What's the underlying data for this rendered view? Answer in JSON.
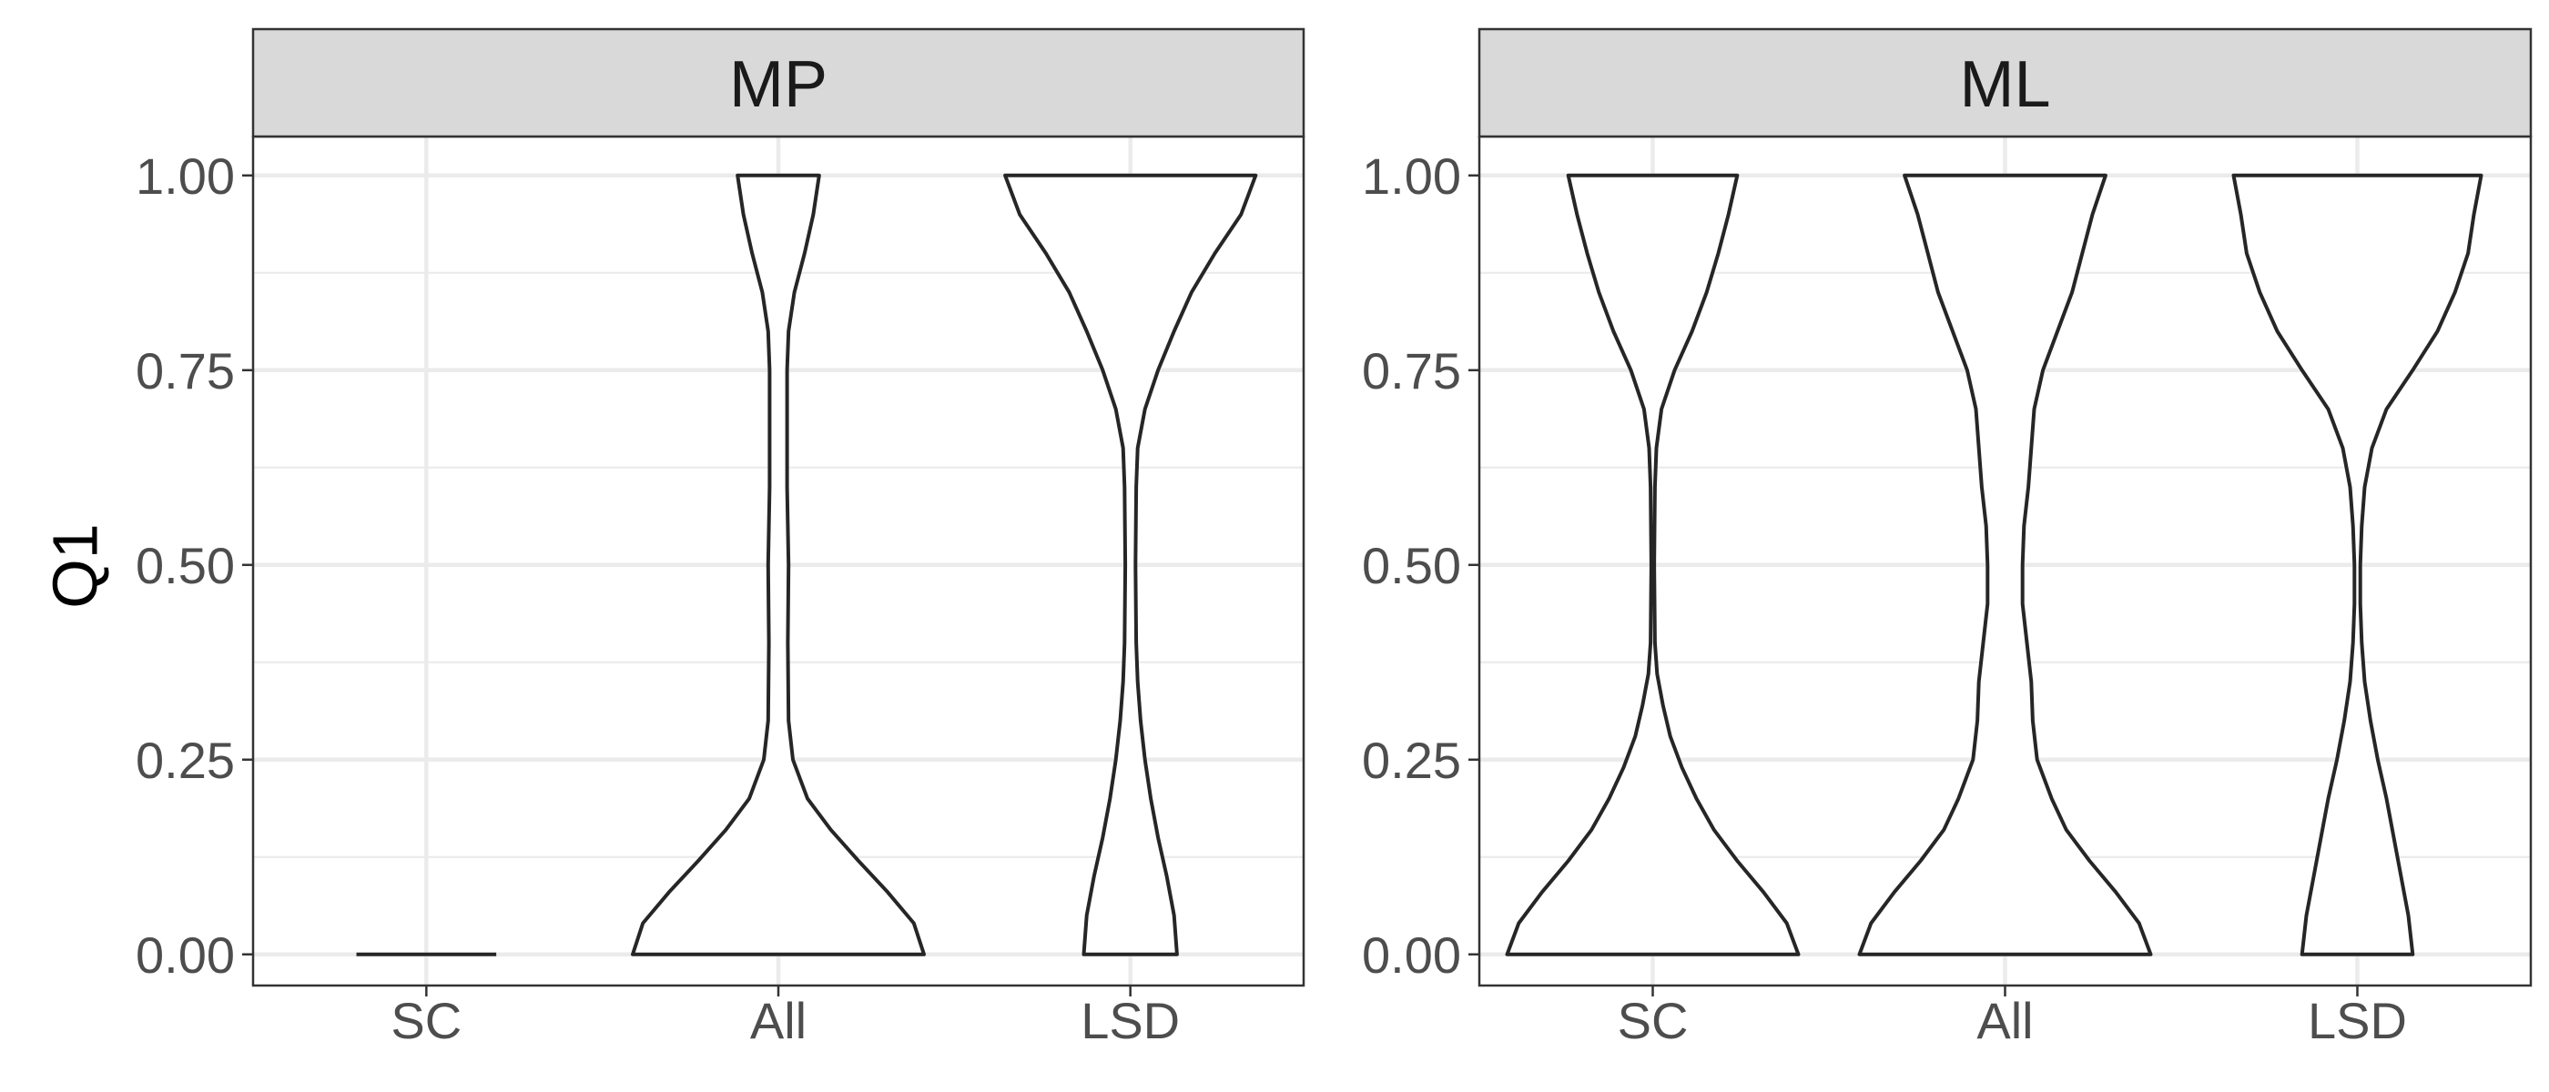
{
  "chart_data": {
    "type": "violin",
    "ylabel": "Q1",
    "xlabel": "",
    "ylim": [
      -0.04,
      1.05
    ],
    "y_ticks": [
      "0.00",
      "0.25",
      "0.50",
      "0.75",
      "1.00"
    ],
    "y_tick_values": [
      0,
      0.25,
      0.5,
      0.75,
      1.0
    ],
    "categories": [
      "SC",
      "All",
      "LSD"
    ],
    "grid": true,
    "colors": {
      "outline": "#262626",
      "fill": "#ffffff",
      "strip": "#d9d9d9",
      "grid": "#ebebeb"
    },
    "panels": [
      {
        "title": "MP",
        "violins": [
          {
            "category": "SC",
            "min": 0,
            "max": 0,
            "width_profile": [
              [
                0,
                1.0
              ]
            ]
          },
          {
            "category": "All",
            "min": 0,
            "max": 1,
            "width_profile": [
              [
                0,
                1.0
              ],
              [
                0.04,
                0.93
              ],
              [
                0.08,
                0.75
              ],
              [
                0.12,
                0.55
              ],
              [
                0.16,
                0.36
              ],
              [
                0.2,
                0.2
              ],
              [
                0.25,
                0.1
              ],
              [
                0.3,
                0.07
              ],
              [
                0.4,
                0.065
              ],
              [
                0.5,
                0.07
              ],
              [
                0.6,
                0.06
              ],
              [
                0.7,
                0.06
              ],
              [
                0.75,
                0.06
              ],
              [
                0.8,
                0.07
              ],
              [
                0.85,
                0.11
              ],
              [
                0.9,
                0.18
              ],
              [
                0.95,
                0.24
              ],
              [
                1.0,
                0.28
              ]
            ]
          },
          {
            "category": "LSD",
            "min": 0,
            "max": 1,
            "width_profile": [
              [
                0,
                0.32
              ],
              [
                0.05,
                0.3
              ],
              [
                0.1,
                0.25
              ],
              [
                0.15,
                0.19
              ],
              [
                0.2,
                0.14
              ],
              [
                0.25,
                0.1
              ],
              [
                0.3,
                0.07
              ],
              [
                0.35,
                0.05
              ],
              [
                0.4,
                0.04
              ],
              [
                0.5,
                0.035
              ],
              [
                0.6,
                0.04
              ],
              [
                0.65,
                0.05
              ],
              [
                0.7,
                0.1
              ],
              [
                0.75,
                0.19
              ],
              [
                0.8,
                0.3
              ],
              [
                0.85,
                0.42
              ],
              [
                0.9,
                0.58
              ],
              [
                0.95,
                0.76
              ],
              [
                1.0,
                0.86
              ]
            ]
          }
        ]
      },
      {
        "title": "ML",
        "violins": [
          {
            "category": "SC",
            "min": 0,
            "max": 1,
            "width_profile": [
              [
                0,
                1.0
              ],
              [
                0.04,
                0.92
              ],
              [
                0.08,
                0.76
              ],
              [
                0.12,
                0.58
              ],
              [
                0.16,
                0.42
              ],
              [
                0.2,
                0.3
              ],
              [
                0.24,
                0.2
              ],
              [
                0.28,
                0.12
              ],
              [
                0.32,
                0.07
              ],
              [
                0.36,
                0.03
              ],
              [
                0.4,
                0.015
              ],
              [
                0.5,
                0.01
              ],
              [
                0.6,
                0.015
              ],
              [
                0.65,
                0.025
              ],
              [
                0.7,
                0.06
              ],
              [
                0.75,
                0.15
              ],
              [
                0.8,
                0.27
              ],
              [
                0.85,
                0.37
              ],
              [
                0.9,
                0.45
              ],
              [
                0.95,
                0.52
              ],
              [
                1.0,
                0.58
              ]
            ]
          },
          {
            "category": "All",
            "min": 0,
            "max": 1,
            "width_profile": [
              [
                0,
                1.0
              ],
              [
                0.04,
                0.92
              ],
              [
                0.08,
                0.76
              ],
              [
                0.12,
                0.58
              ],
              [
                0.16,
                0.42
              ],
              [
                0.2,
                0.32
              ],
              [
                0.25,
                0.22
              ],
              [
                0.3,
                0.19
              ],
              [
                0.35,
                0.18
              ],
              [
                0.4,
                0.15
              ],
              [
                0.45,
                0.12
              ],
              [
                0.5,
                0.12
              ],
              [
                0.55,
                0.13
              ],
              [
                0.6,
                0.16
              ],
              [
                0.65,
                0.18
              ],
              [
                0.7,
                0.2
              ],
              [
                0.75,
                0.26
              ],
              [
                0.8,
                0.36
              ],
              [
                0.85,
                0.46
              ],
              [
                0.9,
                0.53
              ],
              [
                0.95,
                0.6
              ],
              [
                1.0,
                0.69
              ]
            ]
          },
          {
            "category": "LSD",
            "min": 0,
            "max": 1,
            "width_profile": [
              [
                0,
                0.38
              ],
              [
                0.05,
                0.35
              ],
              [
                0.1,
                0.3
              ],
              [
                0.15,
                0.25
              ],
              [
                0.2,
                0.2
              ],
              [
                0.25,
                0.14
              ],
              [
                0.3,
                0.09
              ],
              [
                0.35,
                0.05
              ],
              [
                0.4,
                0.03
              ],
              [
                0.45,
                0.02
              ],
              [
                0.5,
                0.02
              ],
              [
                0.55,
                0.03
              ],
              [
                0.6,
                0.05
              ],
              [
                0.65,
                0.1
              ],
              [
                0.7,
                0.2
              ],
              [
                0.75,
                0.38
              ],
              [
                0.8,
                0.55
              ],
              [
                0.85,
                0.67
              ],
              [
                0.9,
                0.76
              ],
              [
                0.95,
                0.8
              ],
              [
                1.0,
                0.85
              ]
            ]
          }
        ]
      }
    ]
  }
}
